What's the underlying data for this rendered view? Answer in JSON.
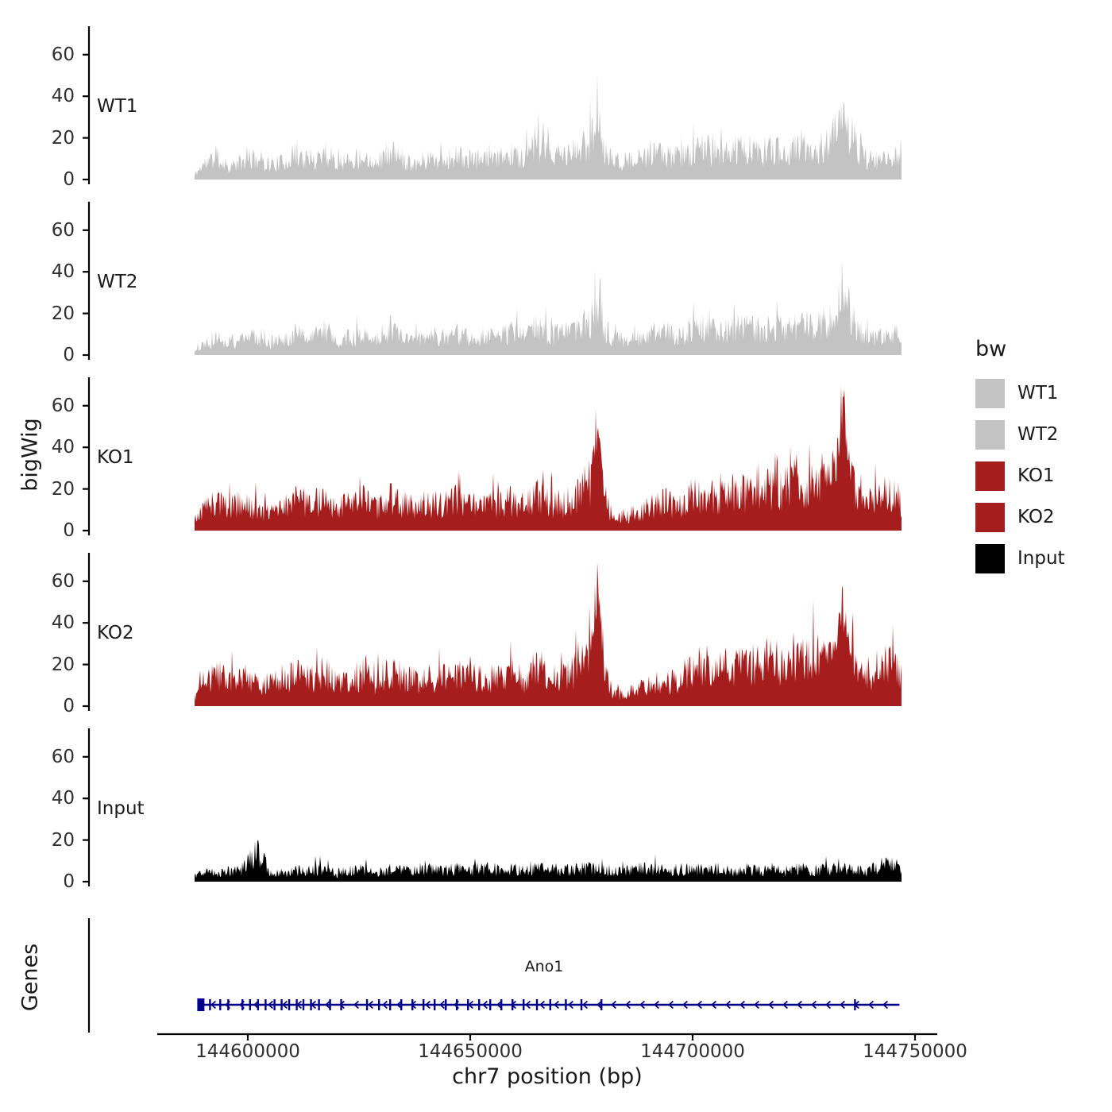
{
  "chart_data": {
    "type": "area",
    "title": "",
    "x_label": "chr7 position (bp)",
    "y_label": "bigWig",
    "genes_label": "Genes",
    "x_axis_range": [
      144579500,
      144755000
    ],
    "x_ticks": [
      144600000,
      144650000,
      144700000,
      144750000
    ],
    "x_tick_labels": [
      "144600000",
      "144650000",
      "144700000",
      "144750000"
    ],
    "y_ticks": [
      0,
      20,
      40,
      60
    ],
    "y_lim": [
      0,
      70
    ],
    "x": [
      144588000,
      144590000,
      144593000,
      144596000,
      144599000,
      144602000,
      144605000,
      144608000,
      144611000,
      144614000,
      144617000,
      144620000,
      144623000,
      144626000,
      144629000,
      144632000,
      144635000,
      144638000,
      144641000,
      144644000,
      144647000,
      144650000,
      144653000,
      144656000,
      144659000,
      144662000,
      144665000,
      144668000,
      144671000,
      144674000,
      144677000,
      144678500,
      144680000,
      144682000,
      144685000,
      144688000,
      144691000,
      144694000,
      144697000,
      144700000,
      144703000,
      144706000,
      144709000,
      144712000,
      144715000,
      144718000,
      144721000,
      144724000,
      144727000,
      144730000,
      144732000,
      144733800,
      144735000,
      144737000,
      144739000,
      144741000,
      144744000,
      144747000
    ],
    "tracks": [
      {
        "name": "WT1",
        "color": "#c3c3c3",
        "seed": 11,
        "values": [
          2,
          7,
          10,
          6,
          8,
          10,
          7,
          8,
          12,
          8,
          13,
          8,
          9,
          11,
          8,
          13,
          9,
          8,
          10,
          9,
          11,
          9,
          10,
          9,
          12,
          10,
          15,
          12,
          11,
          13,
          18,
          30,
          14,
          9,
          8,
          9,
          11,
          12,
          10,
          13,
          15,
          11,
          13,
          15,
          12,
          14,
          13,
          15,
          13,
          17,
          20,
          33,
          26,
          14,
          10,
          9,
          9,
          13
        ]
      },
      {
        "name": "WT2",
        "color": "#c3c3c3",
        "seed": 22,
        "values": [
          2,
          5,
          8,
          6,
          7,
          9,
          6,
          7,
          11,
          7,
          12,
          7,
          8,
          10,
          8,
          12,
          8,
          7,
          9,
          8,
          10,
          8,
          9,
          8,
          11,
          9,
          14,
          10,
          10,
          12,
          16,
          26,
          12,
          8,
          7,
          8,
          10,
          11,
          9,
          12,
          13,
          10,
          12,
          14,
          11,
          13,
          12,
          14,
          12,
          16,
          18,
          30,
          22,
          12,
          9,
          8,
          8,
          12
        ]
      },
      {
        "name": "KO1",
        "color": "#a51d1d",
        "seed": 33,
        "values": [
          4,
          10,
          14,
          11,
          12,
          10,
          9,
          12,
          14,
          11,
          15,
          10,
          12,
          14,
          10,
          15,
          12,
          11,
          13,
          12,
          14,
          12,
          13,
          12,
          14,
          12,
          17,
          13,
          12,
          16,
          22,
          52,
          18,
          5,
          7,
          9,
          11,
          13,
          12,
          16,
          18,
          15,
          19,
          17,
          22,
          18,
          21,
          24,
          20,
          26,
          24,
          65,
          34,
          15,
          12,
          16,
          18,
          14
        ]
      },
      {
        "name": "KO2",
        "color": "#a51d1d",
        "seed": 44,
        "values": [
          4,
          11,
          15,
          12,
          13,
          11,
          10,
          13,
          15,
          12,
          16,
          11,
          13,
          15,
          11,
          16,
          13,
          12,
          14,
          13,
          15,
          13,
          14,
          13,
          15,
          13,
          18,
          14,
          13,
          17,
          24,
          57,
          20,
          5,
          6,
          8,
          10,
          12,
          13,
          17,
          19,
          16,
          20,
          18,
          23,
          19,
          22,
          26,
          22,
          28,
          26,
          48,
          32,
          16,
          13,
          17,
          19,
          15
        ]
      },
      {
        "name": "Input",
        "color": "#000000",
        "seed": 55,
        "values": [
          3,
          5,
          4,
          5,
          6,
          14,
          5,
          4,
          5,
          5,
          6,
          4,
          5,
          5,
          4,
          6,
          5,
          5,
          6,
          5,
          6,
          5,
          6,
          6,
          6,
          5,
          6,
          6,
          5,
          6,
          6,
          6,
          6,
          5,
          5,
          6,
          6,
          5,
          6,
          6,
          5,
          6,
          5,
          6,
          5,
          6,
          5,
          6,
          5,
          6,
          6,
          6,
          6,
          5,
          5,
          6,
          9,
          6
        ]
      }
    ],
    "gene": {
      "name": "Ano1",
      "strand": "-",
      "start": 144589000,
      "end": 144746500,
      "color": "#00008b",
      "exon_ticks": [
        144591500,
        144593800,
        144595600,
        144598800,
        144600500,
        144602300,
        144604000,
        144606000,
        144607600,
        144609300,
        144611000,
        144612500,
        144614200,
        144616000,
        144618500,
        144621000,
        144626800,
        144629500,
        144632000,
        144634500,
        144637000,
        144639500,
        144642000,
        144644500,
        144647000,
        144649500,
        144652000,
        144654500,
        144657000,
        144659500,
        144662000,
        144665000,
        144668000,
        144671500,
        144675000,
        144679500,
        144736500
      ]
    }
  },
  "legend": {
    "title": "bw",
    "entries": [
      {
        "label": "WT1",
        "color": "#c3c3c3"
      },
      {
        "label": "WT2",
        "color": "#c3c3c3"
      },
      {
        "label": "KO1",
        "color": "#a51d1d"
      },
      {
        "label": "KO2",
        "color": "#a51d1d"
      },
      {
        "label": "Input",
        "color": "#000000"
      }
    ]
  }
}
